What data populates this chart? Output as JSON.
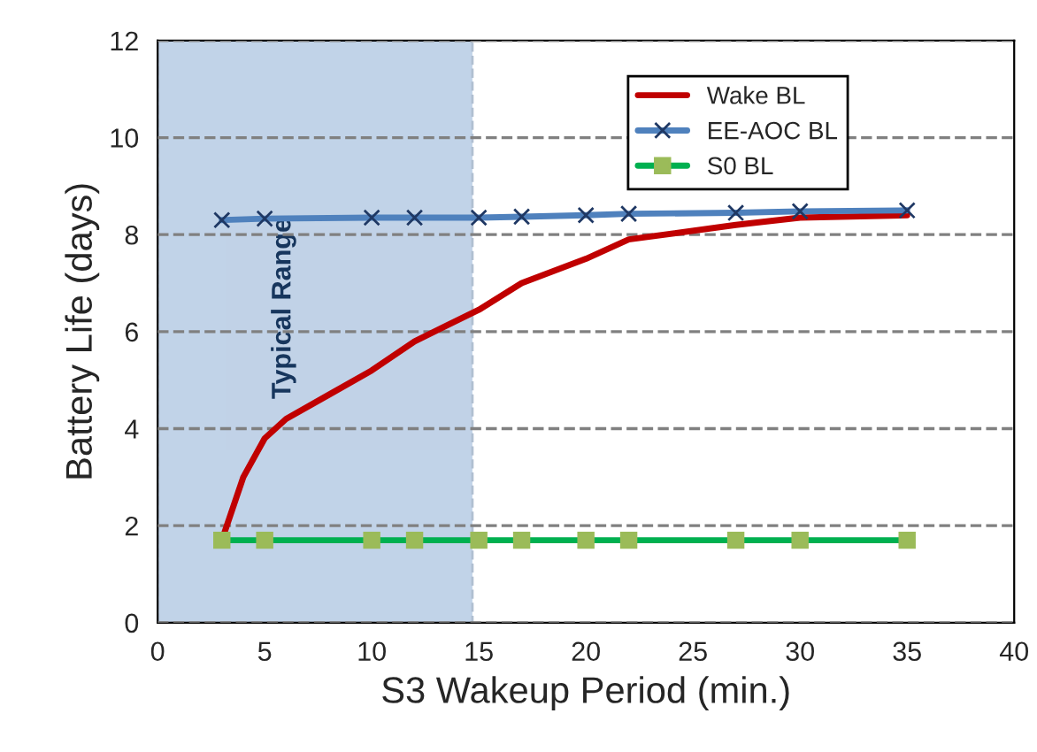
{
  "chart_data": {
    "type": "line",
    "xlabel": "S3 Wakeup Period (min.)",
    "ylabel": "Battery Life (days)",
    "xlim": [
      0,
      40
    ],
    "xticks": [
      0,
      5,
      10,
      15,
      20,
      25,
      30,
      35,
      40
    ],
    "ylim": [
      0,
      12
    ],
    "yticks": [
      0,
      2,
      4,
      6,
      8,
      10,
      12
    ],
    "grid": "y",
    "legend": "top right",
    "line_style": "solid",
    "bands": [
      {
        "axis": "x",
        "from": 0,
        "to": 14.7,
        "label": "Typical Range",
        "color": "#4f81bd"
      }
    ],
    "series": [
      {
        "name": "Wake BL",
        "color": "#c00000",
        "marker": "none",
        "x": [
          3,
          4,
          5,
          6,
          8,
          10,
          12,
          15,
          17,
          20,
          22,
          27,
          30,
          35
        ],
        "values": [
          1.7,
          3.0,
          3.8,
          4.2,
          4.7,
          5.2,
          5.8,
          6.45,
          7.0,
          7.5,
          7.9,
          8.2,
          8.35,
          8.4
        ]
      },
      {
        "name": "EE-AOC BL",
        "color": "#4f81bd",
        "marker": "cross",
        "x": [
          3,
          5,
          10,
          12,
          15,
          17,
          20,
          22,
          27,
          30,
          35
        ],
        "values": [
          8.3,
          8.33,
          8.35,
          8.35,
          8.35,
          8.37,
          8.4,
          8.43,
          8.45,
          8.48,
          8.5
        ]
      },
      {
        "name": "S0 BL",
        "color": "#00b050",
        "marker": "square",
        "x": [
          3,
          5,
          10,
          12,
          15,
          17,
          20,
          22,
          27,
          30,
          35
        ],
        "values": [
          1.7,
          1.7,
          1.7,
          1.7,
          1.7,
          1.7,
          1.7,
          1.7,
          1.7,
          1.7,
          1.7
        ]
      }
    ]
  }
}
